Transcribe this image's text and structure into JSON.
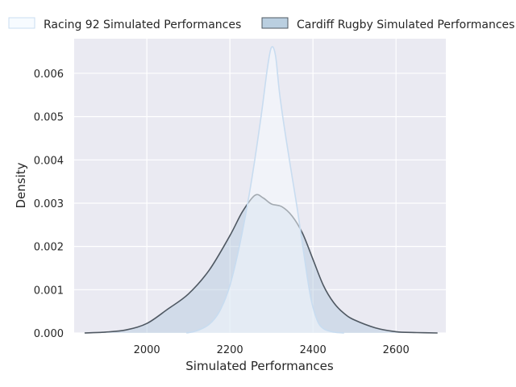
{
  "chart_data": {
    "type": "area",
    "title": "",
    "xlabel": "Simulated Performances",
    "ylabel": "Density",
    "xlim": [
      1825,
      2720
    ],
    "ylim": [
      0,
      0.0068
    ],
    "x_ticks": [
      "2000",
      "2200",
      "2400",
      "2600"
    ],
    "x_tick_values": [
      2000,
      2200,
      2400,
      2600
    ],
    "y_ticks": [
      "0.000",
      "0.001",
      "0.002",
      "0.003",
      "0.004",
      "0.005",
      "0.006"
    ],
    "y_tick_values": [
      0,
      0.001,
      0.002,
      0.003,
      0.004,
      0.005,
      0.006
    ],
    "grid": true,
    "legend_position": "top",
    "series": [
      {
        "name": "Racing 92 Simulated Performances",
        "line_color": "#c8dcf0",
        "fill_color": "#f7fbff",
        "x": [
          2095,
          2120,
          2150,
          2175,
          2200,
          2225,
          2250,
          2275,
          2290,
          2300,
          2310,
          2320,
          2335,
          2350,
          2365,
          2380,
          2395,
          2410,
          2425,
          2450,
          2475
        ],
        "y": [
          0.0,
          5e-05,
          0.0002,
          0.0005,
          0.0011,
          0.0021,
          0.0034,
          0.005,
          0.0061,
          0.0066,
          0.0064,
          0.0055,
          0.0045,
          0.0036,
          0.0027,
          0.0017,
          0.0008,
          0.0003,
          0.0001,
          2e-05,
          0.0
        ]
      },
      {
        "name": "Cardiff Rugby Simulated Performances",
        "line_color": "#4f5862",
        "fill_color": "#b3cadd",
        "x": [
          1850,
          1900,
          1950,
          2000,
          2050,
          2100,
          2150,
          2200,
          2230,
          2260,
          2280,
          2300,
          2325,
          2350,
          2375,
          2400,
          2425,
          2450,
          2475,
          2500,
          2550,
          2600,
          2650,
          2700
        ],
        "y": [
          0.0,
          2e-05,
          7e-05,
          0.00022,
          0.00055,
          0.0009,
          0.00145,
          0.00225,
          0.0028,
          0.00318,
          0.00312,
          0.00298,
          0.00292,
          0.0027,
          0.0023,
          0.0017,
          0.0011,
          0.0007,
          0.00045,
          0.0003,
          0.00012,
          3e-05,
          1e-05,
          0.0
        ]
      }
    ]
  }
}
